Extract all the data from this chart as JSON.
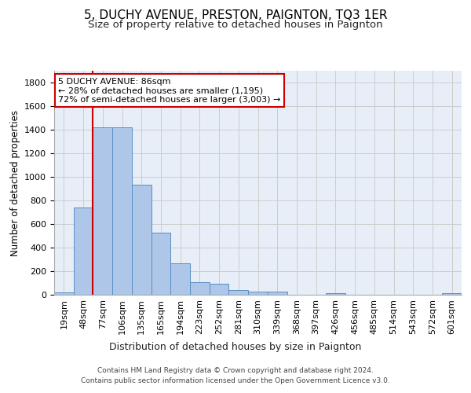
{
  "title": "5, DUCHY AVENUE, PRESTON, PAIGNTON, TQ3 1ER",
  "subtitle": "Size of property relative to detached houses in Paignton",
  "xlabel": "Distribution of detached houses by size in Paignton",
  "ylabel": "Number of detached properties",
  "footer_line1": "Contains HM Land Registry data © Crown copyright and database right 2024.",
  "footer_line2": "Contains public sector information licensed under the Open Government Licence v3.0.",
  "bar_labels": [
    "19sqm",
    "48sqm",
    "77sqm",
    "106sqm",
    "135sqm",
    "165sqm",
    "194sqm",
    "223sqm",
    "252sqm",
    "281sqm",
    "310sqm",
    "339sqm",
    "368sqm",
    "397sqm",
    "426sqm",
    "456sqm",
    "485sqm",
    "514sqm",
    "543sqm",
    "572sqm",
    "601sqm"
  ],
  "bar_values": [
    22,
    740,
    1420,
    1420,
    935,
    530,
    265,
    105,
    93,
    38,
    28,
    28,
    0,
    0,
    15,
    0,
    0,
    0,
    0,
    0,
    15
  ],
  "bar_color": "#aec6e8",
  "bar_edge_color": "#5a8fc2",
  "vline_color": "#cc0000",
  "vline_pos": 1.5,
  "annotation_line1": "5 DUCHY AVENUE: 86sqm",
  "annotation_line2": "← 28% of detached houses are smaller (1,195)",
  "annotation_line3": "72% of semi-detached houses are larger (3,003) →",
  "annotation_box_color": "#cc0000",
  "ylim": [
    0,
    1900
  ],
  "yticks": [
    0,
    200,
    400,
    600,
    800,
    1000,
    1200,
    1400,
    1600,
    1800
  ],
  "grid_color": "#cccccc",
  "bg_color": "#e8eef8",
  "title_fontsize": 11,
  "subtitle_fontsize": 9.5,
  "ylabel_fontsize": 8.5,
  "xlabel_fontsize": 9,
  "tick_fontsize": 8,
  "annotation_fontsize": 8
}
